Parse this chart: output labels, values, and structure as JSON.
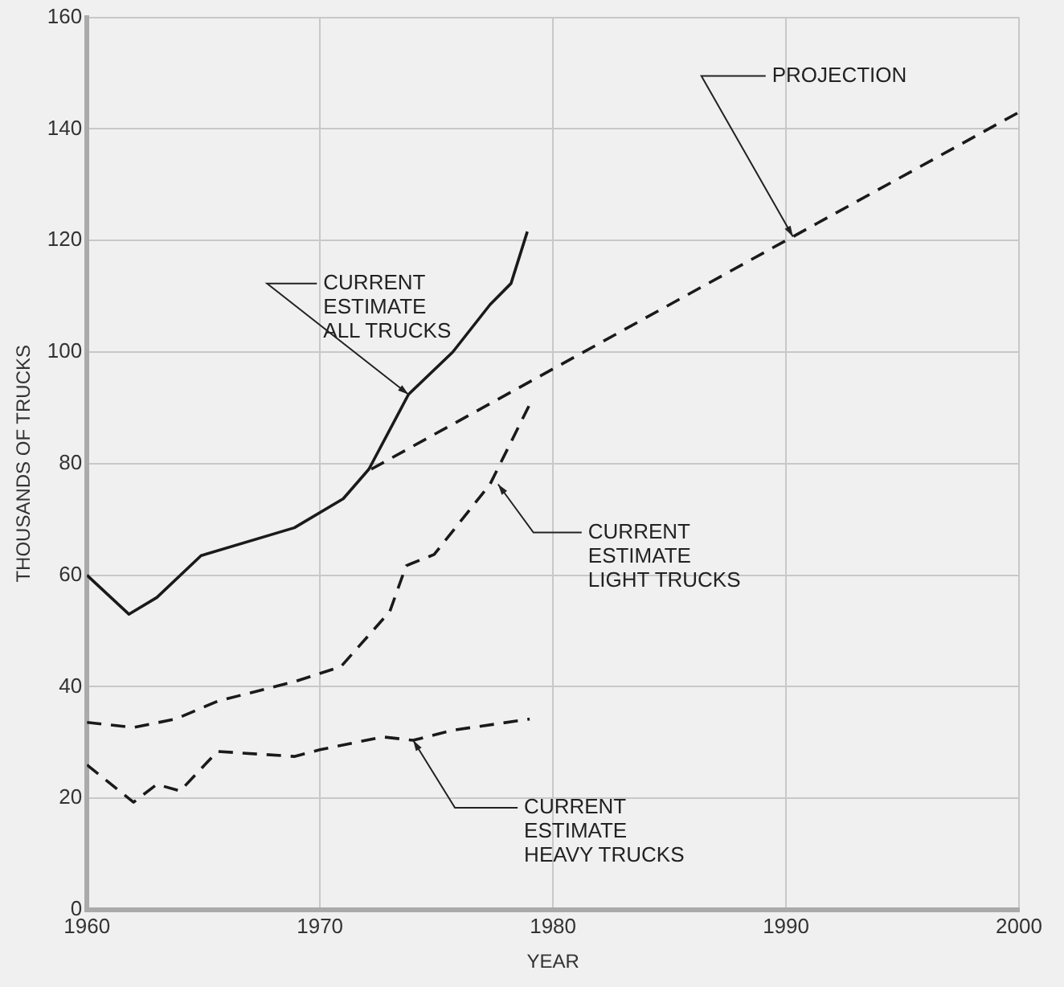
{
  "chart_data": {
    "type": "line",
    "xlabel": "YEAR",
    "ylabel": "THOUSANDS OF TRUCKS",
    "xlim": [
      1960,
      2000
    ],
    "xticks": [
      1960,
      1970,
      1980,
      1990,
      2000
    ],
    "ylim": [
      0,
      160
    ],
    "yticks": [
      0,
      20,
      40,
      60,
      80,
      100,
      120,
      140,
      160
    ],
    "grid": true,
    "legend": false,
    "marker": "none",
    "series": [
      {
        "name": "CURRENT ESTIMATE ALL TRUCKS",
        "color": "#1a1a1a",
        "line_style": "solid",
        "x": [
          1960,
          1961.8,
          1963,
          1964.9,
          1968.9,
          1971,
          1972.1,
          1973.8,
          1975.7,
          1977.3,
          1978.2,
          1978.9
        ],
        "values": [
          60,
          53,
          56,
          63.5,
          68.5,
          73.7,
          79,
          92.4,
          100,
          108.5,
          112.3,
          121.6
        ]
      },
      {
        "name": "CURRENT ESTIMATE LIGHT TRUCKS",
        "color": "#1a1a1a",
        "line_style": "dashed",
        "x": [
          1960,
          1962,
          1963.8,
          1965.6,
          1968.9,
          1970.9,
          1973,
          1973.7,
          1974.9,
          1977.3,
          1979
        ],
        "values": [
          33.6,
          32.7,
          34.2,
          37.4,
          40.9,
          43.6,
          53.5,
          61.7,
          63.7,
          76.3,
          90.6
        ]
      },
      {
        "name": "CURRENT ESTIMATE HEAVY TRUCKS",
        "color": "#1a1a1a",
        "line_style": "dashed",
        "x": [
          1960,
          1962,
          1963,
          1964,
          1965.6,
          1968.9,
          1970,
          1972.7,
          1974,
          1975.7,
          1979
        ],
        "values": [
          26,
          19.3,
          22.5,
          21.3,
          28.4,
          27.5,
          28.7,
          31,
          30.4,
          32.2,
          34.2
        ]
      },
      {
        "name": "PROJECTION",
        "color": "#1a1a1a",
        "line_style": "dashed",
        "x": [
          1972.2,
          1990,
          2000
        ],
        "values": [
          79,
          120,
          143
        ]
      }
    ]
  }
}
